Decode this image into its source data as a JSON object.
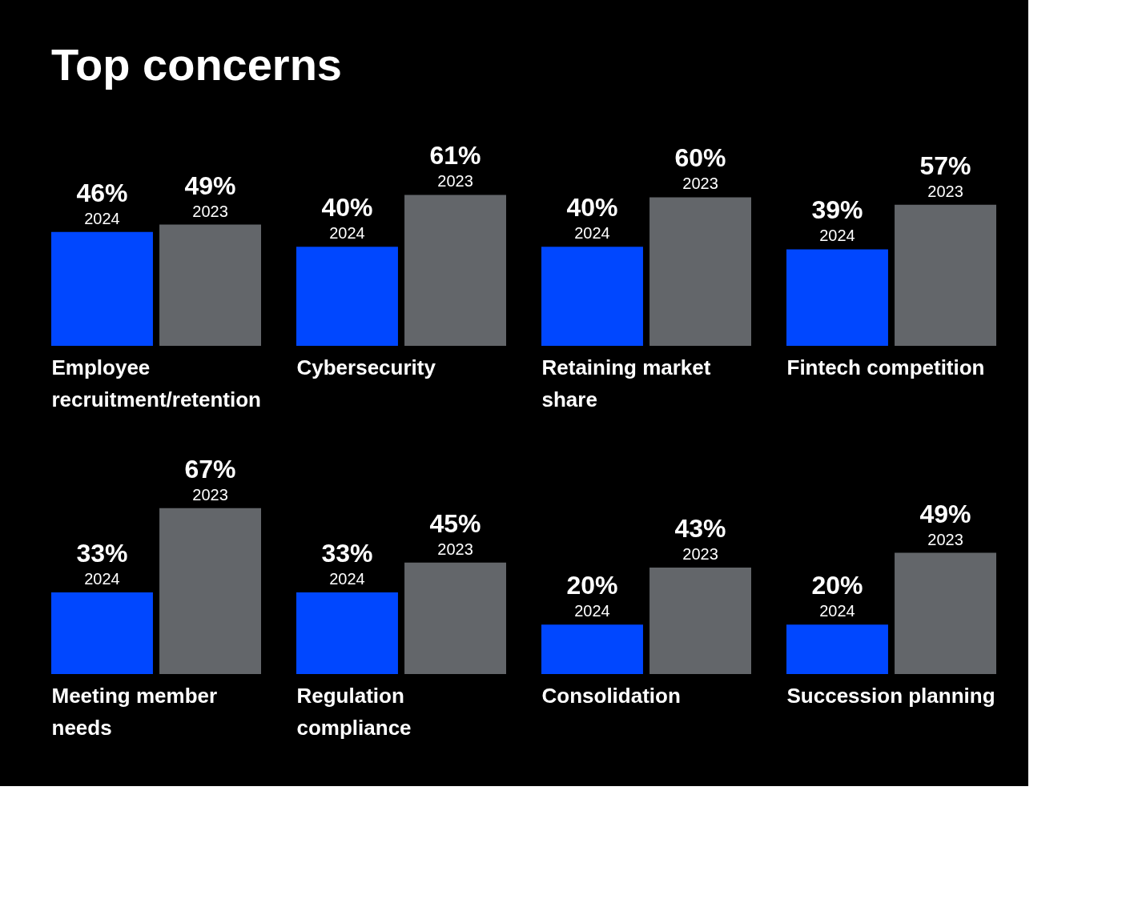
{
  "chart_data": [
    {
      "type": "bar",
      "title": "Top concerns",
      "xlabel": "Employee recruitment/retention",
      "categories": [
        null
      ],
      "series": [
        {
          "name": "2024",
          "color": "#0047ff",
          "values": [
            46
          ],
          "value_labels": [
            "46%"
          ]
        },
        {
          "name": "2023",
          "color": "#63666a",
          "values": [
            49
          ],
          "value_labels": [
            "49%"
          ]
        }
      ]
    },
    {
      "type": "bar",
      "xlabel": "Cybersecurity",
      "categories": [
        null
      ],
      "series": [
        {
          "name": "2024",
          "color": "#0047ff",
          "values": [
            40
          ],
          "value_labels": [
            "40%"
          ]
        },
        {
          "name": "2023",
          "color": "#63666a",
          "values": [
            61
          ],
          "value_labels": [
            "61%"
          ]
        }
      ]
    },
    {
      "type": "bar",
      "xlabel": "Retaining market share",
      "categories": [
        null
      ],
      "series": [
        {
          "name": "2024",
          "color": "#0047ff",
          "values": [
            40
          ],
          "value_labels": [
            "40%"
          ]
        },
        {
          "name": "2023",
          "color": "#63666a",
          "values": [
            60
          ],
          "value_labels": [
            "60%"
          ]
        }
      ]
    },
    {
      "type": "bar",
      "xlabel": "Fintech competition",
      "categories": [
        null
      ],
      "series": [
        {
          "name": "2024",
          "color": "#0047ff",
          "values": [
            39
          ],
          "value_labels": [
            "39%"
          ]
        },
        {
          "name": "2023",
          "color": "#63666a",
          "values": [
            57
          ],
          "value_labels": [
            "57%"
          ]
        }
      ]
    },
    {
      "type": "bar",
      "xlabel": "Meeting member needs",
      "categories": [
        null
      ],
      "series": [
        {
          "name": "2024",
          "color": "#0047ff",
          "values": [
            33
          ],
          "value_labels": [
            "33%"
          ]
        },
        {
          "name": "2023",
          "color": "#63666a",
          "values": [
            67
          ],
          "value_labels": [
            "67%"
          ]
        }
      ]
    },
    {
      "type": "bar",
      "xlabel": "Regulation compliance",
      "categories": [
        null
      ],
      "series": [
        {
          "name": "2024",
          "color": "#0047ff",
          "values": [
            33
          ],
          "value_labels": [
            "33%"
          ]
        },
        {
          "name": "2023",
          "color": "#63666a",
          "values": [
            45
          ],
          "value_labels": [
            "45%"
          ]
        }
      ]
    },
    {
      "type": "bar",
      "xlabel": "Consolidation",
      "categories": [
        null
      ],
      "series": [
        {
          "name": "2024",
          "color": "#0047ff",
          "values": [
            20
          ],
          "value_labels": [
            "20%"
          ]
        },
        {
          "name": "2023",
          "color": "#63666a",
          "values": [
            43
          ],
          "value_labels": [
            "43%"
          ]
        }
      ]
    },
    {
      "type": "bar",
      "xlabel": "Succession planning",
      "categories": [
        null
      ],
      "series": [
        {
          "name": "2024",
          "color": "#0047ff",
          "values": [
            20
          ],
          "value_labels": [
            "20%"
          ]
        },
        {
          "name": "2023",
          "color": "#63666a",
          "values": [
            49
          ],
          "value_labels": [
            "49%"
          ]
        }
      ]
    }
  ]
}
